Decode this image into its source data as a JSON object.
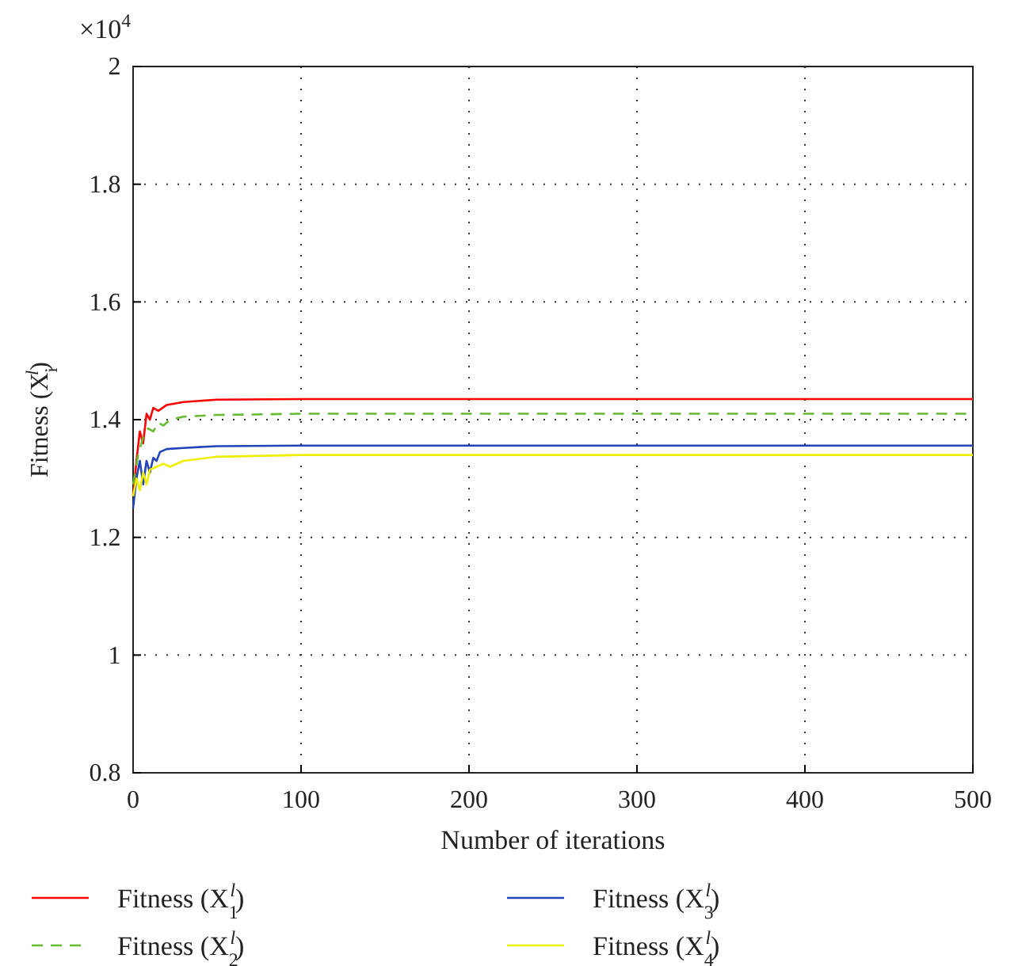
{
  "chart_data": {
    "type": "line",
    "xlabel": "Number of iterations",
    "ylabel": "Fitness (X$_{i}$$^{l}$)",
    "annotations": [
      "×10$^{4}$"
    ],
    "xlim": [
      0,
      500
    ],
    "xticks": [
      0,
      100,
      200,
      300,
      400,
      500
    ],
    "ylim": [
      0.8,
      2
    ],
    "yticks": [
      {
        "value": 0.8,
        "label": "0.8"
      },
      1,
      1.2,
      1.4,
      1.6,
      1.8,
      2
    ],
    "grid": true,
    "legend": "bottom",
    "marker": "none",
    "series": [
      {
        "name": "Fitness (X$_{1}$$^{l}$)",
        "color": "#ff0000",
        "line_style": "solid",
        "x": [
          0,
          2,
          4,
          6,
          8,
          10,
          12,
          15,
          20,
          30,
          50,
          100,
          500
        ],
        "values": [
          1.27,
          1.33,
          1.38,
          1.36,
          1.41,
          1.4,
          1.42,
          1.415,
          1.425,
          1.43,
          1.434,
          1.435,
          1.435
        ]
      },
      {
        "name": "Fitness (X$_{2}$$^{l}$)",
        "color": "#66bb33",
        "line_style": "dashed",
        "x": [
          0,
          3,
          6,
          9,
          12,
          15,
          18,
          22,
          30,
          50,
          100,
          500
        ],
        "values": [
          1.29,
          1.34,
          1.37,
          1.385,
          1.38,
          1.395,
          1.39,
          1.4,
          1.405,
          1.408,
          1.41,
          1.41
        ]
      },
      {
        "name": "Fitness (X$_{3}$$^{l}$)",
        "color": "#2244bb",
        "line_style": "solid",
        "x": [
          0,
          2,
          4,
          6,
          8,
          10,
          12,
          14,
          16,
          20,
          30,
          50,
          100,
          500
        ],
        "values": [
          1.25,
          1.3,
          1.33,
          1.29,
          1.33,
          1.31,
          1.335,
          1.33,
          1.345,
          1.35,
          1.352,
          1.355,
          1.356,
          1.356
        ]
      },
      {
        "name": "Fitness (X$_{4}$$^{l}$)",
        "color": "#eeee00",
        "line_style": "solid",
        "x": [
          0,
          2,
          4,
          6,
          8,
          10,
          14,
          18,
          22,
          30,
          50,
          100,
          500
        ],
        "values": [
          1.27,
          1.3,
          1.28,
          1.31,
          1.29,
          1.315,
          1.32,
          1.325,
          1.32,
          1.33,
          1.337,
          1.34,
          1.34
        ]
      }
    ]
  }
}
